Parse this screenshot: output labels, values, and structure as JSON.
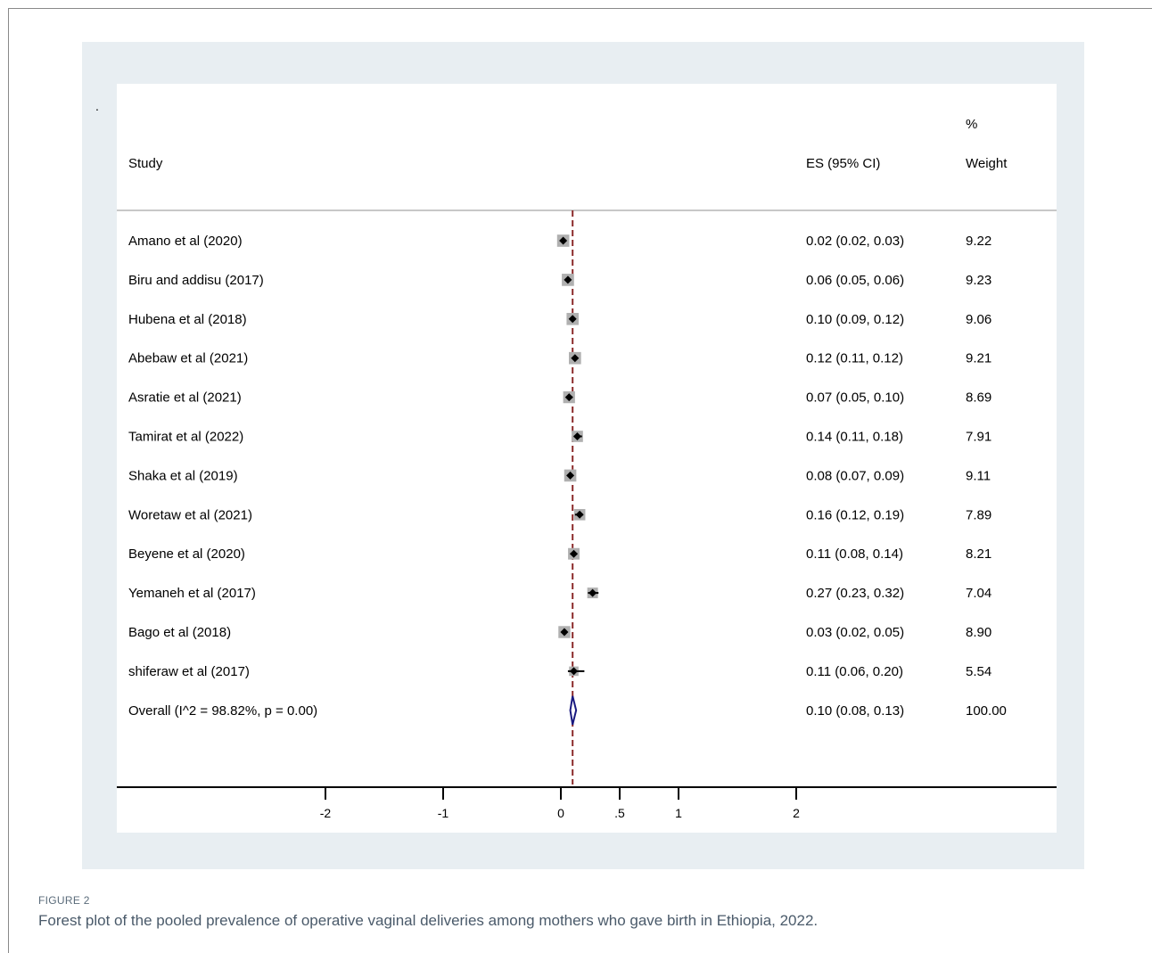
{
  "figure": {
    "label": "FIGURE 2",
    "caption": "Forest plot of the pooled prevalence of operative vaginal deliveries among mothers who gave birth in Ethiopia, 2022.",
    "corner_mark": "."
  },
  "colors": {
    "reference_line": "#8b2a2a",
    "diamond": "#1a1a80",
    "weight_box": "#b0b0b0",
    "panel_bg": "#e8eef2"
  },
  "chart_data": {
    "type": "forest",
    "headers": {
      "study": "Study",
      "es": "ES (95% CI)",
      "weight_top": "%",
      "weight": "Weight"
    },
    "reference_line_value": 0.1,
    "xlim": [
      -2.0,
      2.0
    ],
    "ticks": [
      {
        "value": -2,
        "label": "-2"
      },
      {
        "value": -1,
        "label": "-1"
      },
      {
        "value": 0,
        "label": "0"
      },
      {
        "value": 0.5,
        "label": ".5"
      },
      {
        "value": 1,
        "label": "1"
      },
      {
        "value": 2,
        "label": "2"
      }
    ],
    "studies": [
      {
        "name": "Amano et al  (2020)",
        "es": 0.02,
        "lower": 0.02,
        "upper": 0.03,
        "es_text": "0.02 (0.02, 0.03)",
        "weight": 9.22,
        "weight_text": "9.22"
      },
      {
        "name": "Biru and addisu (2017)",
        "es": 0.06,
        "lower": 0.05,
        "upper": 0.06,
        "es_text": "0.06 (0.05, 0.06)",
        "weight": 9.23,
        "weight_text": "9.23"
      },
      {
        "name": "Hubena et al  (2018)",
        "es": 0.1,
        "lower": 0.09,
        "upper": 0.12,
        "es_text": "0.10 (0.09, 0.12)",
        "weight": 9.06,
        "weight_text": "9.06"
      },
      {
        "name": "Abebaw et al  (2021)",
        "es": 0.12,
        "lower": 0.11,
        "upper": 0.12,
        "es_text": "0.12 (0.11, 0.12)",
        "weight": 9.21,
        "weight_text": "9.21"
      },
      {
        "name": "Asratie et al  (2021)",
        "es": 0.07,
        "lower": 0.05,
        "upper": 0.1,
        "es_text": "0.07 (0.05, 0.10)",
        "weight": 8.69,
        "weight_text": "8.69"
      },
      {
        "name": "Tamirat et al  (2022)",
        "es": 0.14,
        "lower": 0.11,
        "upper": 0.18,
        "es_text": "0.14 (0.11, 0.18)",
        "weight": 7.91,
        "weight_text": "7.91"
      },
      {
        "name": "Shaka et al  (2019)",
        "es": 0.08,
        "lower": 0.07,
        "upper": 0.09,
        "es_text": "0.08 (0.07, 0.09)",
        "weight": 9.11,
        "weight_text": "9.11"
      },
      {
        "name": "Woretaw et al  (2021)",
        "es": 0.16,
        "lower": 0.12,
        "upper": 0.19,
        "es_text": "0.16 (0.12, 0.19)",
        "weight": 7.89,
        "weight_text": "7.89"
      },
      {
        "name": "Beyene et al  (2020)",
        "es": 0.11,
        "lower": 0.08,
        "upper": 0.14,
        "es_text": "0.11 (0.08, 0.14)",
        "weight": 8.21,
        "weight_text": "8.21"
      },
      {
        "name": "Yemaneh et al  (2017)",
        "es": 0.27,
        "lower": 0.23,
        "upper": 0.32,
        "es_text": "0.27 (0.23, 0.32)",
        "weight": 7.04,
        "weight_text": "7.04"
      },
      {
        "name": "Bago et al  (2018)",
        "es": 0.03,
        "lower": 0.02,
        "upper": 0.05,
        "es_text": "0.03 (0.02, 0.05)",
        "weight": 8.9,
        "weight_text": "8.90"
      },
      {
        "name": "shiferaw et al  (2017)",
        "es": 0.11,
        "lower": 0.06,
        "upper": 0.2,
        "es_text": "0.11 (0.06, 0.20)",
        "weight": 5.54,
        "weight_text": "5.54"
      }
    ],
    "overall": {
      "name": "Overall  (I^2 = 98.82%, p = 0.00)",
      "es": 0.1,
      "lower": 0.08,
      "upper": 0.13,
      "es_text": "0.10 (0.08, 0.13)",
      "weight_text": "100.00"
    }
  }
}
